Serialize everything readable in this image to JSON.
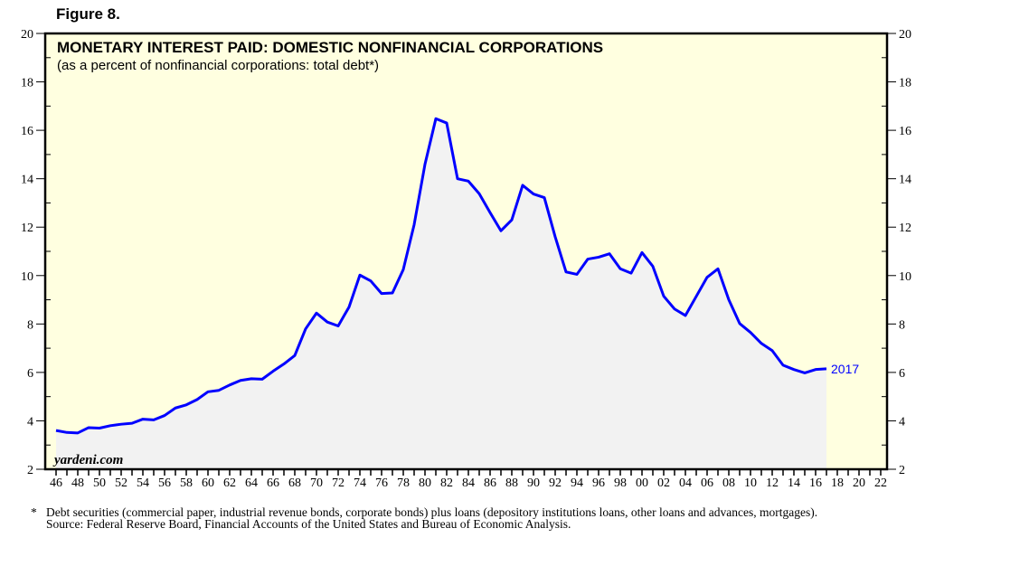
{
  "figure_label": "Figure 8.",
  "watermark": "yardeni.com",
  "footnote": "Debt securities (commercial paper, industrial revenue bonds, corporate bonds) plus loans (depository institutions loans, other loans and advances, mortgages).",
  "footnote_marker": "*",
  "source": "Source: Federal Reserve Board, Financial Accounts of the United States and Bureau of Economic Analysis.",
  "colors": {
    "line": "#0000ff",
    "plot_bg": "#ffffe0",
    "fill": "#f2f2f2"
  },
  "chart_data": {
    "type": "area",
    "title": "MONETARY INTEREST PAID: DOMESTIC NONFINANCIAL CORPORATIONS",
    "subtitle": "(as a percent of nonfinancial corporations: total debt*)",
    "end_label": "2017",
    "ylim": [
      2,
      20
    ],
    "yticks": [
      2,
      4,
      6,
      8,
      10,
      12,
      14,
      16,
      18,
      20
    ],
    "xlim": [
      1946,
      2022
    ],
    "xtick_labels": [
      "46",
      "48",
      "50",
      "52",
      "54",
      "56",
      "58",
      "60",
      "62",
      "64",
      "66",
      "68",
      "70",
      "72",
      "74",
      "76",
      "78",
      "80",
      "82",
      "84",
      "86",
      "88",
      "90",
      "92",
      "94",
      "96",
      "98",
      "00",
      "02",
      "04",
      "06",
      "08",
      "10",
      "12",
      "14",
      "16",
      "18",
      "20",
      "22"
    ],
    "grid": false,
    "x": [
      1946,
      1947,
      1948,
      1949,
      1950,
      1951,
      1952,
      1953,
      1954,
      1955,
      1956,
      1957,
      1958,
      1959,
      1960,
      1961,
      1962,
      1963,
      1964,
      1965,
      1966,
      1967,
      1968,
      1969,
      1970,
      1971,
      1972,
      1973,
      1974,
      1975,
      1976,
      1977,
      1978,
      1979,
      1980,
      1981,
      1982,
      1983,
      1984,
      1985,
      1986,
      1987,
      1988,
      1989,
      1990,
      1991,
      1992,
      1993,
      1994,
      1995,
      1996,
      1997,
      1998,
      1999,
      2000,
      2001,
      2002,
      2003,
      2004,
      2005,
      2006,
      2007,
      2008,
      2009,
      2010,
      2011,
      2012,
      2013,
      2014,
      2015,
      2016,
      2017
    ],
    "values": [
      3.6,
      3.52,
      3.5,
      3.72,
      3.7,
      3.8,
      3.86,
      3.9,
      4.07,
      4.04,
      4.22,
      4.53,
      4.66,
      4.88,
      5.2,
      5.26,
      5.48,
      5.67,
      5.74,
      5.72,
      6.05,
      6.35,
      6.7,
      7.8,
      8.45,
      8.08,
      7.92,
      8.7,
      10.02,
      9.78,
      9.26,
      9.28,
      10.25,
      12.1,
      14.6,
      16.48,
      16.3,
      14.0,
      13.9,
      13.38,
      12.6,
      11.85,
      12.3,
      13.73,
      13.37,
      13.22,
      11.6,
      10.15,
      10.05,
      10.68,
      10.76,
      10.9,
      10.28,
      10.1,
      10.95,
      10.38,
      9.15,
      8.62,
      8.35,
      9.14,
      9.93,
      10.28,
      9.0,
      8.02,
      7.65,
      7.2,
      6.9,
      6.3,
      6.12,
      5.98,
      6.12,
      6.15
    ]
  }
}
